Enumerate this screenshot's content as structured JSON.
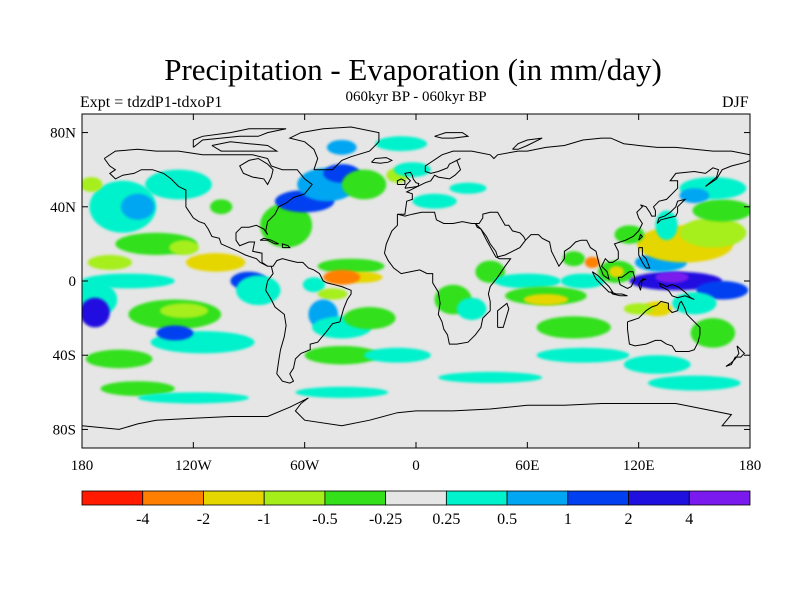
{
  "title": "Precipitation - Evaporation (in mm/day)",
  "subtitle": "060kyr BP - 060kyr BP",
  "experiment": "Expt = tdzdP1-tdxoP1",
  "season": "DJF",
  "map": {
    "projection": "equirectangular",
    "lon_range": [
      -180,
      180
    ],
    "lat_range": [
      -90,
      90
    ],
    "lat_ticks": [
      {
        "value": 80,
        "label": "80N"
      },
      {
        "value": 40,
        "label": "40N"
      },
      {
        "value": 0,
        "label": "0"
      },
      {
        "value": -40,
        "label": "40S"
      },
      {
        "value": -80,
        "label": "80S"
      }
    ],
    "lon_ticks": [
      {
        "value": -180,
        "label": "180"
      },
      {
        "value": -120,
        "label": "120W"
      },
      {
        "value": -60,
        "label": "60W"
      },
      {
        "value": 0,
        "label": "0"
      },
      {
        "value": 60,
        "label": "60E"
      },
      {
        "value": 120,
        "label": "120E"
      },
      {
        "value": 180,
        "label": "180"
      }
    ],
    "background_color": "#e6e6e6",
    "coastline_color": "#000000"
  },
  "colorbar": {
    "colors": [
      "#ff1a00",
      "#ff8000",
      "#e6d600",
      "#a6ee1a",
      "#33e01a",
      "#e6e6e6",
      "#00f2cc",
      "#00a6f2",
      "#0040f0",
      "#2010e0",
      "#7a1aee"
    ],
    "labels": [
      "-4",
      "-2",
      "-1",
      "-0.5",
      "-0.25",
      "0.25",
      "0.5",
      "1",
      "2",
      "4"
    ]
  },
  "field_regions": [
    {
      "level": 6,
      "lon": -158,
      "lat": 40,
      "rx": 18,
      "ry": 14
    },
    {
      "level": 7,
      "lon": -150,
      "lat": 40,
      "rx": 9,
      "ry": 7
    },
    {
      "level": 6,
      "lon": -128,
      "lat": 52,
      "rx": 18,
      "ry": 8
    },
    {
      "level": 3,
      "lon": -175,
      "lat": 52,
      "rx": 6,
      "ry": 4
    },
    {
      "level": 4,
      "lon": -140,
      "lat": 20,
      "rx": 22,
      "ry": 6
    },
    {
      "level": 3,
      "lon": -125,
      "lat": 18,
      "rx": 8,
      "ry": 4
    },
    {
      "level": 2,
      "lon": -108,
      "lat": 10,
      "rx": 16,
      "ry": 5
    },
    {
      "level": 3,
      "lon": -165,
      "lat": 10,
      "rx": 12,
      "ry": 4
    },
    {
      "level": 6,
      "lon": -155,
      "lat": 0,
      "rx": 25,
      "ry": 4
    },
    {
      "level": 6,
      "lon": -175,
      "lat": -10,
      "rx": 14,
      "ry": 10
    },
    {
      "level": 9,
      "lon": -173,
      "lat": -17,
      "rx": 8,
      "ry": 8
    },
    {
      "level": 4,
      "lon": -130,
      "lat": -18,
      "rx": 25,
      "ry": 8
    },
    {
      "level": 3,
      "lon": -125,
      "lat": -16,
      "rx": 13,
      "ry": 4
    },
    {
      "level": 6,
      "lon": -115,
      "lat": -33,
      "rx": 28,
      "ry": 6
    },
    {
      "level": 8,
      "lon": -130,
      "lat": -28,
      "rx": 10,
      "ry": 4
    },
    {
      "level": 4,
      "lon": -160,
      "lat": -42,
      "rx": 18,
      "ry": 5
    },
    {
      "level": 8,
      "lon": -90,
      "lat": 0,
      "rx": 10,
      "ry": 5
    },
    {
      "level": 6,
      "lon": -85,
      "lat": -5,
      "rx": 12,
      "ry": 8
    },
    {
      "level": 4,
      "lon": -70,
      "lat": 30,
      "rx": 14,
      "ry": 12
    },
    {
      "level": 8,
      "lon": -60,
      "lat": 43,
      "rx": 16,
      "ry": 6
    },
    {
      "level": 7,
      "lon": -48,
      "lat": 52,
      "rx": 16,
      "ry": 9
    },
    {
      "level": 8,
      "lon": -40,
      "lat": 58,
      "rx": 10,
      "ry": 5
    },
    {
      "level": 4,
      "lon": -28,
      "lat": 52,
      "rx": 12,
      "ry": 8
    },
    {
      "level": 3,
      "lon": -10,
      "lat": 57,
      "rx": 6,
      "ry": 4
    },
    {
      "level": 6,
      "lon": -2,
      "lat": 60,
      "rx": 10,
      "ry": 4
    },
    {
      "level": 6,
      "lon": -8,
      "lat": 74,
      "rx": 14,
      "ry": 4
    },
    {
      "level": 7,
      "lon": -40,
      "lat": 72,
      "rx": 8,
      "ry": 4
    },
    {
      "level": 6,
      "lon": 10,
      "lat": 43,
      "rx": 12,
      "ry": 4
    },
    {
      "level": 6,
      "lon": 28,
      "lat": 50,
      "rx": 10,
      "ry": 3
    },
    {
      "level": 4,
      "lon": -35,
      "lat": 8,
      "rx": 18,
      "ry": 4
    },
    {
      "level": 2,
      "lon": -30,
      "lat": 2,
      "rx": 12,
      "ry": 3
    },
    {
      "level": 1,
      "lon": -40,
      "lat": 2,
      "rx": 10,
      "ry": 4
    },
    {
      "level": 6,
      "lon": -55,
      "lat": -2,
      "rx": 6,
      "ry": 4
    },
    {
      "level": 3,
      "lon": -45,
      "lat": -7,
      "rx": 8,
      "ry": 3
    },
    {
      "level": 7,
      "lon": -50,
      "lat": -18,
      "rx": 8,
      "ry": 8
    },
    {
      "level": 6,
      "lon": -40,
      "lat": -25,
      "rx": 16,
      "ry": 6
    },
    {
      "level": 4,
      "lon": -25,
      "lat": -20,
      "rx": 14,
      "ry": 6
    },
    {
      "level": 4,
      "lon": -40,
      "lat": -40,
      "rx": 20,
      "ry": 5
    },
    {
      "level": 6,
      "lon": -10,
      "lat": -40,
      "rx": 18,
      "ry": 4
    },
    {
      "level": 4,
      "lon": 20,
      "lat": -10,
      "rx": 10,
      "ry": 8
    },
    {
      "level": 6,
      "lon": 30,
      "lat": -15,
      "rx": 8,
      "ry": 6
    },
    {
      "level": 4,
      "lon": 40,
      "lat": 5,
      "rx": 8,
      "ry": 6
    },
    {
      "level": 6,
      "lon": 60,
      "lat": 0,
      "rx": 18,
      "ry": 4
    },
    {
      "level": 4,
      "lon": 70,
      "lat": -8,
      "rx": 22,
      "ry": 5
    },
    {
      "level": 2,
      "lon": 70,
      "lat": -10,
      "rx": 12,
      "ry": 3
    },
    {
      "level": 6,
      "lon": 90,
      "lat": 0,
      "rx": 12,
      "ry": 4
    },
    {
      "level": 4,
      "lon": 85,
      "lat": -25,
      "rx": 20,
      "ry": 6
    },
    {
      "level": 6,
      "lon": 90,
      "lat": -40,
      "rx": 25,
      "ry": 4
    },
    {
      "level": 4,
      "lon": 85,
      "lat": 12,
      "rx": 6,
      "ry": 4
    },
    {
      "level": 1,
      "lon": 95,
      "lat": 10,
      "rx": 4,
      "ry": 3
    },
    {
      "level": 4,
      "lon": 108,
      "lat": 5,
      "rx": 10,
      "ry": 6
    },
    {
      "level": 2,
      "lon": 108,
      "lat": 5,
      "rx": 4,
      "ry": 3
    },
    {
      "level": 9,
      "lon": 140,
      "lat": 0,
      "rx": 25,
      "ry": 5
    },
    {
      "level": 8,
      "lon": 165,
      "lat": -5,
      "rx": 14,
      "ry": 5
    },
    {
      "level": 10,
      "lon": 138,
      "lat": 2,
      "rx": 9,
      "ry": 3
    },
    {
      "level": 7,
      "lon": 132,
      "lat": 10,
      "rx": 14,
      "ry": 5
    },
    {
      "level": 2,
      "lon": 145,
      "lat": 20,
      "rx": 26,
      "ry": 10
    },
    {
      "level": 3,
      "lon": 160,
      "lat": 26,
      "rx": 18,
      "ry": 8
    },
    {
      "level": 4,
      "lon": 165,
      "lat": 38,
      "rx": 16,
      "ry": 6
    },
    {
      "level": 6,
      "lon": 160,
      "lat": 50,
      "rx": 18,
      "ry": 6
    },
    {
      "level": 7,
      "lon": 150,
      "lat": 46,
      "rx": 8,
      "ry": 4
    },
    {
      "level": 6,
      "lon": 135,
      "lat": 30,
      "rx": 6,
      "ry": 8
    },
    {
      "level": 4,
      "lon": 115,
      "lat": 25,
      "rx": 8,
      "ry": 5
    },
    {
      "level": 6,
      "lon": 150,
      "lat": -12,
      "rx": 12,
      "ry": 6
    },
    {
      "level": 2,
      "lon": 130,
      "lat": -15,
      "rx": 8,
      "ry": 4
    },
    {
      "level": 3,
      "lon": 120,
      "lat": -15,
      "rx": 8,
      "ry": 3
    },
    {
      "level": 4,
      "lon": 160,
      "lat": -28,
      "rx": 12,
      "ry": 8
    },
    {
      "level": 6,
      "lon": 130,
      "lat": -45,
      "rx": 18,
      "ry": 5
    },
    {
      "level": 4,
      "lon": -150,
      "lat": -58,
      "rx": 20,
      "ry": 4
    },
    {
      "level": 6,
      "lon": -120,
      "lat": -63,
      "rx": 30,
      "ry": 3
    },
    {
      "level": 6,
      "lon": -40,
      "lat": -60,
      "rx": 25,
      "ry": 3
    },
    {
      "level": 6,
      "lon": 40,
      "lat": -52,
      "rx": 28,
      "ry": 3
    },
    {
      "level": 6,
      "lon": 150,
      "lat": -55,
      "rx": 25,
      "ry": 4
    },
    {
      "level": 4,
      "lon": -105,
      "lat": 40,
      "rx": 6,
      "ry": 4
    }
  ]
}
